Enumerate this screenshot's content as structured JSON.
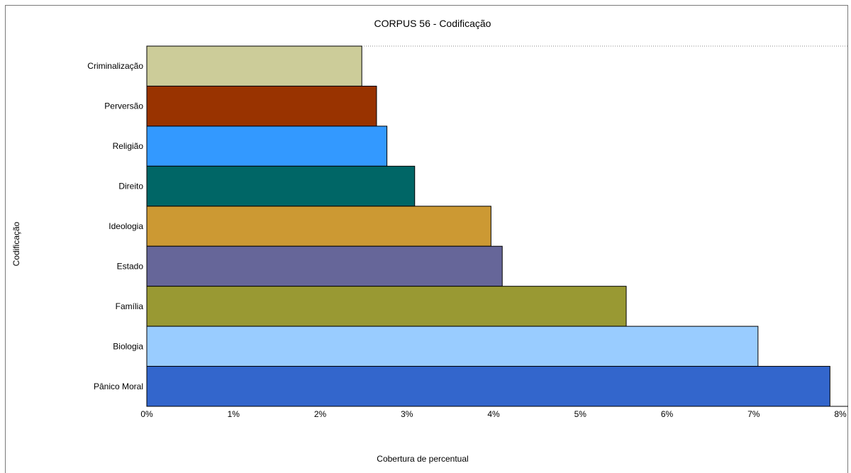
{
  "chart_data": {
    "type": "bar",
    "orientation": "horizontal",
    "title": "CORPUS 56 - Codificação",
    "xlabel": "Cobertura de percentual",
    "ylabel": "Codificação",
    "xlim": [
      0,
      8
    ],
    "xticks": [
      "0%",
      "1%",
      "2%",
      "3%",
      "4%",
      "5%",
      "6%",
      "7%",
      "8%"
    ],
    "categories": [
      "Criminalização",
      "Perversão",
      "Religião",
      "Direito",
      "Ideologia",
      "Estado",
      "Família",
      "Biologia",
      "Pânico Moral"
    ],
    "values": [
      2.48,
      2.65,
      2.77,
      3.09,
      3.97,
      4.1,
      5.53,
      7.05,
      7.88
    ],
    "colors": [
      "#CCCC99",
      "#993300",
      "#3399FF",
      "#006666",
      "#CC9933",
      "#666699",
      "#999933",
      "#99CCFF",
      "#3366CC"
    ],
    "grid": false,
    "legend": "none"
  }
}
